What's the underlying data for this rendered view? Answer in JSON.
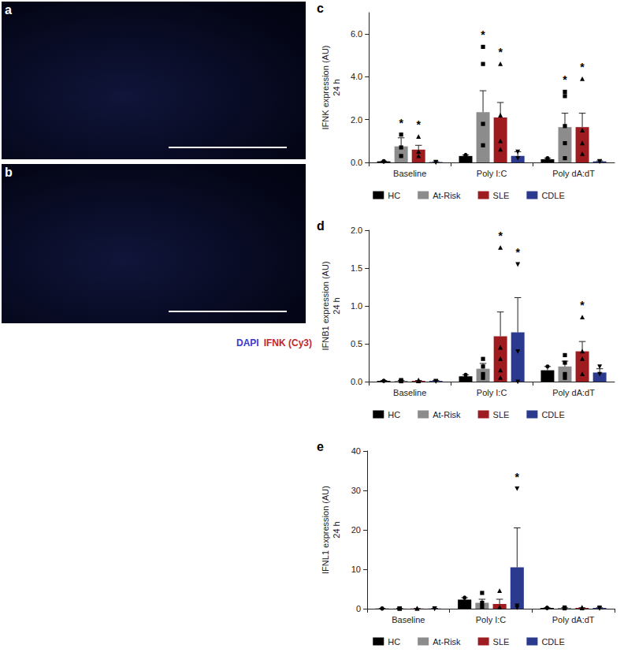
{
  "images": [
    {
      "panel": "a"
    },
    {
      "panel": "b",
      "legend": [
        {
          "text": "DAPI",
          "color": "#3a3ad0"
        },
        {
          "text": "IFNK (Cy3)",
          "color": "#c0282d"
        }
      ]
    }
  ],
  "chart_data": [
    {
      "type": "bar",
      "panel": "c",
      "y_label": "IFNK expression (AU)",
      "y_sublabel": "24 h",
      "categories": [
        "Baseline",
        "Poly I:C",
        "Poly dA:dT"
      ],
      "ylim": [
        0,
        7
      ],
      "yticks": [
        {
          "value": 0,
          "label": "0.0"
        },
        {
          "value": 2,
          "label": "2.0"
        },
        {
          "value": 4,
          "label": "4.0"
        },
        {
          "value": 6,
          "label": "6.0"
        }
      ],
      "legend": "bottom",
      "grid": false,
      "significance_mark": "*",
      "series": [
        {
          "name": "HC",
          "color": "#000000",
          "marker": "circle",
          "values": [
            0.05,
            0.3,
            0.15
          ],
          "errors": [
            0.01,
            0.05,
            0.05
          ],
          "points": [
            [
              0.06,
              0.04,
              0.05
            ],
            [
              0.35,
              0.3,
              0.2
            ],
            [
              0.2,
              0.15,
              0.1
            ]
          ],
          "significant": [
            false,
            false,
            false
          ]
        },
        {
          "name": "At-Risk",
          "color": "#8c8c8c",
          "marker": "square",
          "values": [
            0.75,
            2.35,
            1.65
          ],
          "errors": [
            0.4,
            1.0,
            0.65
          ],
          "points": [
            [
              1.3,
              0.7,
              0.3
            ],
            [
              5.4,
              4.6,
              1.8,
              0.8
            ],
            [
              3.3,
              3.1,
              1.7,
              0.9,
              0.2
            ]
          ],
          "significant": [
            true,
            true,
            true
          ]
        },
        {
          "name": "SLE",
          "color": "#9e1b20",
          "marker": "triangle",
          "values": [
            0.6,
            2.1,
            1.65
          ],
          "errors": [
            0.2,
            0.7,
            0.65
          ],
          "points": [
            [
              1.2,
              0.5,
              0.3
            ],
            [
              4.6,
              2.2,
              1.0,
              0.6
            ],
            [
              3.9,
              1.5,
              0.9,
              0.4
            ]
          ],
          "significant": [
            true,
            true,
            true
          ]
        },
        {
          "name": "CDLE",
          "color": "#2b3a8f",
          "marker": "triangle-down",
          "values": [
            0.02,
            0.3,
            0.05
          ],
          "errors": [
            0.01,
            0.2,
            0.02
          ],
          "points": [
            [
              0.02,
              0.01
            ],
            [
              0.5,
              0.2
            ],
            [
              0.06,
              0.04
            ]
          ],
          "significant": [
            false,
            false,
            false
          ]
        }
      ]
    },
    {
      "type": "bar",
      "panel": "d",
      "y_label": "IFNB1 expression (AU)",
      "y_sublabel": "24 h",
      "categories": [
        "Baseline",
        "Poly I:C",
        "Poly dA:dT"
      ],
      "ylim": [
        0,
        2
      ],
      "yticks": [
        {
          "value": 0,
          "label": "0.0"
        },
        {
          "value": 0.5,
          "label": "0.5"
        },
        {
          "value": 1,
          "label": "1.0"
        },
        {
          "value": 1.5,
          "label": "1.5"
        },
        {
          "value": 2,
          "label": "2.0"
        }
      ],
      "legend": "bottom",
      "grid": false,
      "significance_mark": "*",
      "series": [
        {
          "name": "HC",
          "color": "#000000",
          "marker": "circle",
          "values": [
            0.01,
            0.07,
            0.15
          ],
          "errors": [
            0.005,
            0.02,
            0.05
          ],
          "points": [
            [
              0.01,
              0.01
            ],
            [
              0.09,
              0.05
            ],
            [
              0.2,
              0.1
            ]
          ],
          "significant": [
            false,
            false,
            false
          ]
        },
        {
          "name": "At-Risk",
          "color": "#8c8c8c",
          "marker": "square",
          "values": [
            0.01,
            0.17,
            0.2
          ],
          "errors": [
            0.005,
            0.07,
            0.07
          ],
          "points": [
            [
              0.02,
              0.01,
              0.005
            ],
            [
              0.3,
              0.2,
              0.1,
              0.05
            ],
            [
              0.35,
              0.25,
              0.1,
              0.05
            ]
          ],
          "significant": [
            false,
            false,
            false
          ]
        },
        {
          "name": "SLE",
          "color": "#9e1b20",
          "marker": "triangle",
          "values": [
            0.01,
            0.6,
            0.4
          ],
          "errors": [
            0.005,
            0.32,
            0.13
          ],
          "points": [
            [
              0.02,
              0.01,
              0.005
            ],
            [
              1.77,
              0.45,
              0.3,
              0.15,
              0.05
            ],
            [
              0.85,
              0.4,
              0.3,
              0.1
            ]
          ],
          "significant": [
            false,
            true,
            true
          ]
        },
        {
          "name": "CDLE",
          "color": "#2b3a8f",
          "marker": "triangle-down",
          "values": [
            0.01,
            0.65,
            0.12
          ],
          "errors": [
            0.005,
            0.46,
            0.05
          ],
          "points": [
            [
              0.01,
              0.005
            ],
            [
              1.55,
              0.4,
              0.0
            ],
            [
              0.2,
              0.1
            ]
          ],
          "significant": [
            false,
            true,
            false
          ]
        }
      ]
    },
    {
      "type": "bar",
      "panel": "e",
      "y_label": "IFNL1 expression (AU)",
      "y_sublabel": "24 h",
      "categories": [
        "Baseline",
        "Poly I:C",
        "Poly dA:dT"
      ],
      "ylim": [
        0,
        40
      ],
      "yticks": [
        0,
        10,
        20,
        30,
        40
      ],
      "legend": "bottom",
      "grid": false,
      "significance_mark": "*",
      "series": [
        {
          "name": "HC",
          "color": "#000000",
          "marker": "circle",
          "values": [
            0.05,
            2.3,
            0.2
          ],
          "errors": [
            0.02,
            0.5,
            0.05
          ],
          "points": [
            [
              0.06,
              0.04
            ],
            [
              2.8,
              1.8
            ],
            [
              0.25,
              0.15
            ]
          ],
          "significant": [
            false,
            false,
            false
          ]
        },
        {
          "name": "At-Risk",
          "color": "#8c8c8c",
          "marker": "square",
          "values": [
            0.05,
            1.5,
            0.2
          ],
          "errors": [
            0.02,
            0.9,
            0.05
          ],
          "points": [
            [
              0.06,
              0.04,
              0.03
            ],
            [
              4.0,
              1.5,
              0.5
            ],
            [
              0.3,
              0.2,
              0.1
            ]
          ],
          "significant": [
            false,
            false,
            false
          ]
        },
        {
          "name": "SLE",
          "color": "#9e1b20",
          "marker": "triangle",
          "values": [
            0.05,
            1.2,
            0.2
          ],
          "errors": [
            0.02,
            1.2,
            0.05
          ],
          "points": [
            [
              0.06,
              0.04
            ],
            [
              4.5,
              0.3
            ],
            [
              0.3,
              0.1
            ]
          ],
          "significant": [
            false,
            false,
            false
          ]
        },
        {
          "name": "CDLE",
          "color": "#2b3a8f",
          "marker": "triangle-down",
          "values": [
            0.05,
            10.5,
            0.2
          ],
          "errors": [
            0.02,
            10.0,
            0.05
          ],
          "points": [
            [
              0.06,
              0.04
            ],
            [
              30.5,
              0.8,
              0.3
            ],
            [
              0.3,
              0.1
            ]
          ],
          "significant": [
            false,
            true,
            false
          ]
        }
      ]
    }
  ]
}
